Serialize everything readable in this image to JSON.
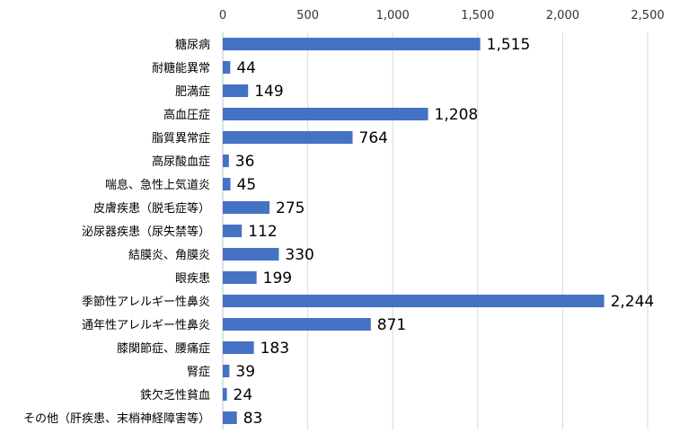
{
  "chart_data": {
    "type": "bar",
    "orientation": "horizontal",
    "title": "",
    "xlabel": "",
    "ylabel": "",
    "xlim": [
      0,
      2500
    ],
    "ticks": [
      0,
      500,
      1000,
      1500,
      2000,
      2500
    ],
    "tick_labels": [
      "0",
      "500",
      "1,000",
      "1,500",
      "2,000",
      "2,500"
    ],
    "axis_position": "top",
    "grid": true,
    "legend": "none",
    "bar_color": "#4472c4",
    "categories": [
      "糖尿病",
      "耐糖能異常",
      "肥満症",
      "高血圧症",
      "脂質異常症",
      "高尿酸血症",
      "喘息、急性上気道炎",
      "皮膚疾患（脱毛症等）",
      "泌尿器疾患（尿失禁等）",
      "結膜炎、角膜炎",
      "眼疾患",
      "季節性アレルギー性鼻炎",
      "通年性アレルギー性鼻炎",
      "膝関節症、腰痛症",
      "腎症",
      "鉄欠乏性貧血",
      "その他（肝疾患、末梢神経障害等）"
    ],
    "values": [
      1515,
      44,
      149,
      1208,
      764,
      36,
      45,
      275,
      112,
      330,
      199,
      2244,
      871,
      183,
      39,
      24,
      83
    ],
    "value_labels": [
      "1,515",
      "44",
      "149",
      "1,208",
      "764",
      "36",
      "45",
      "275",
      "112",
      "330",
      "199",
      "2,244",
      "871",
      "183",
      "39",
      "24",
      "83"
    ]
  }
}
